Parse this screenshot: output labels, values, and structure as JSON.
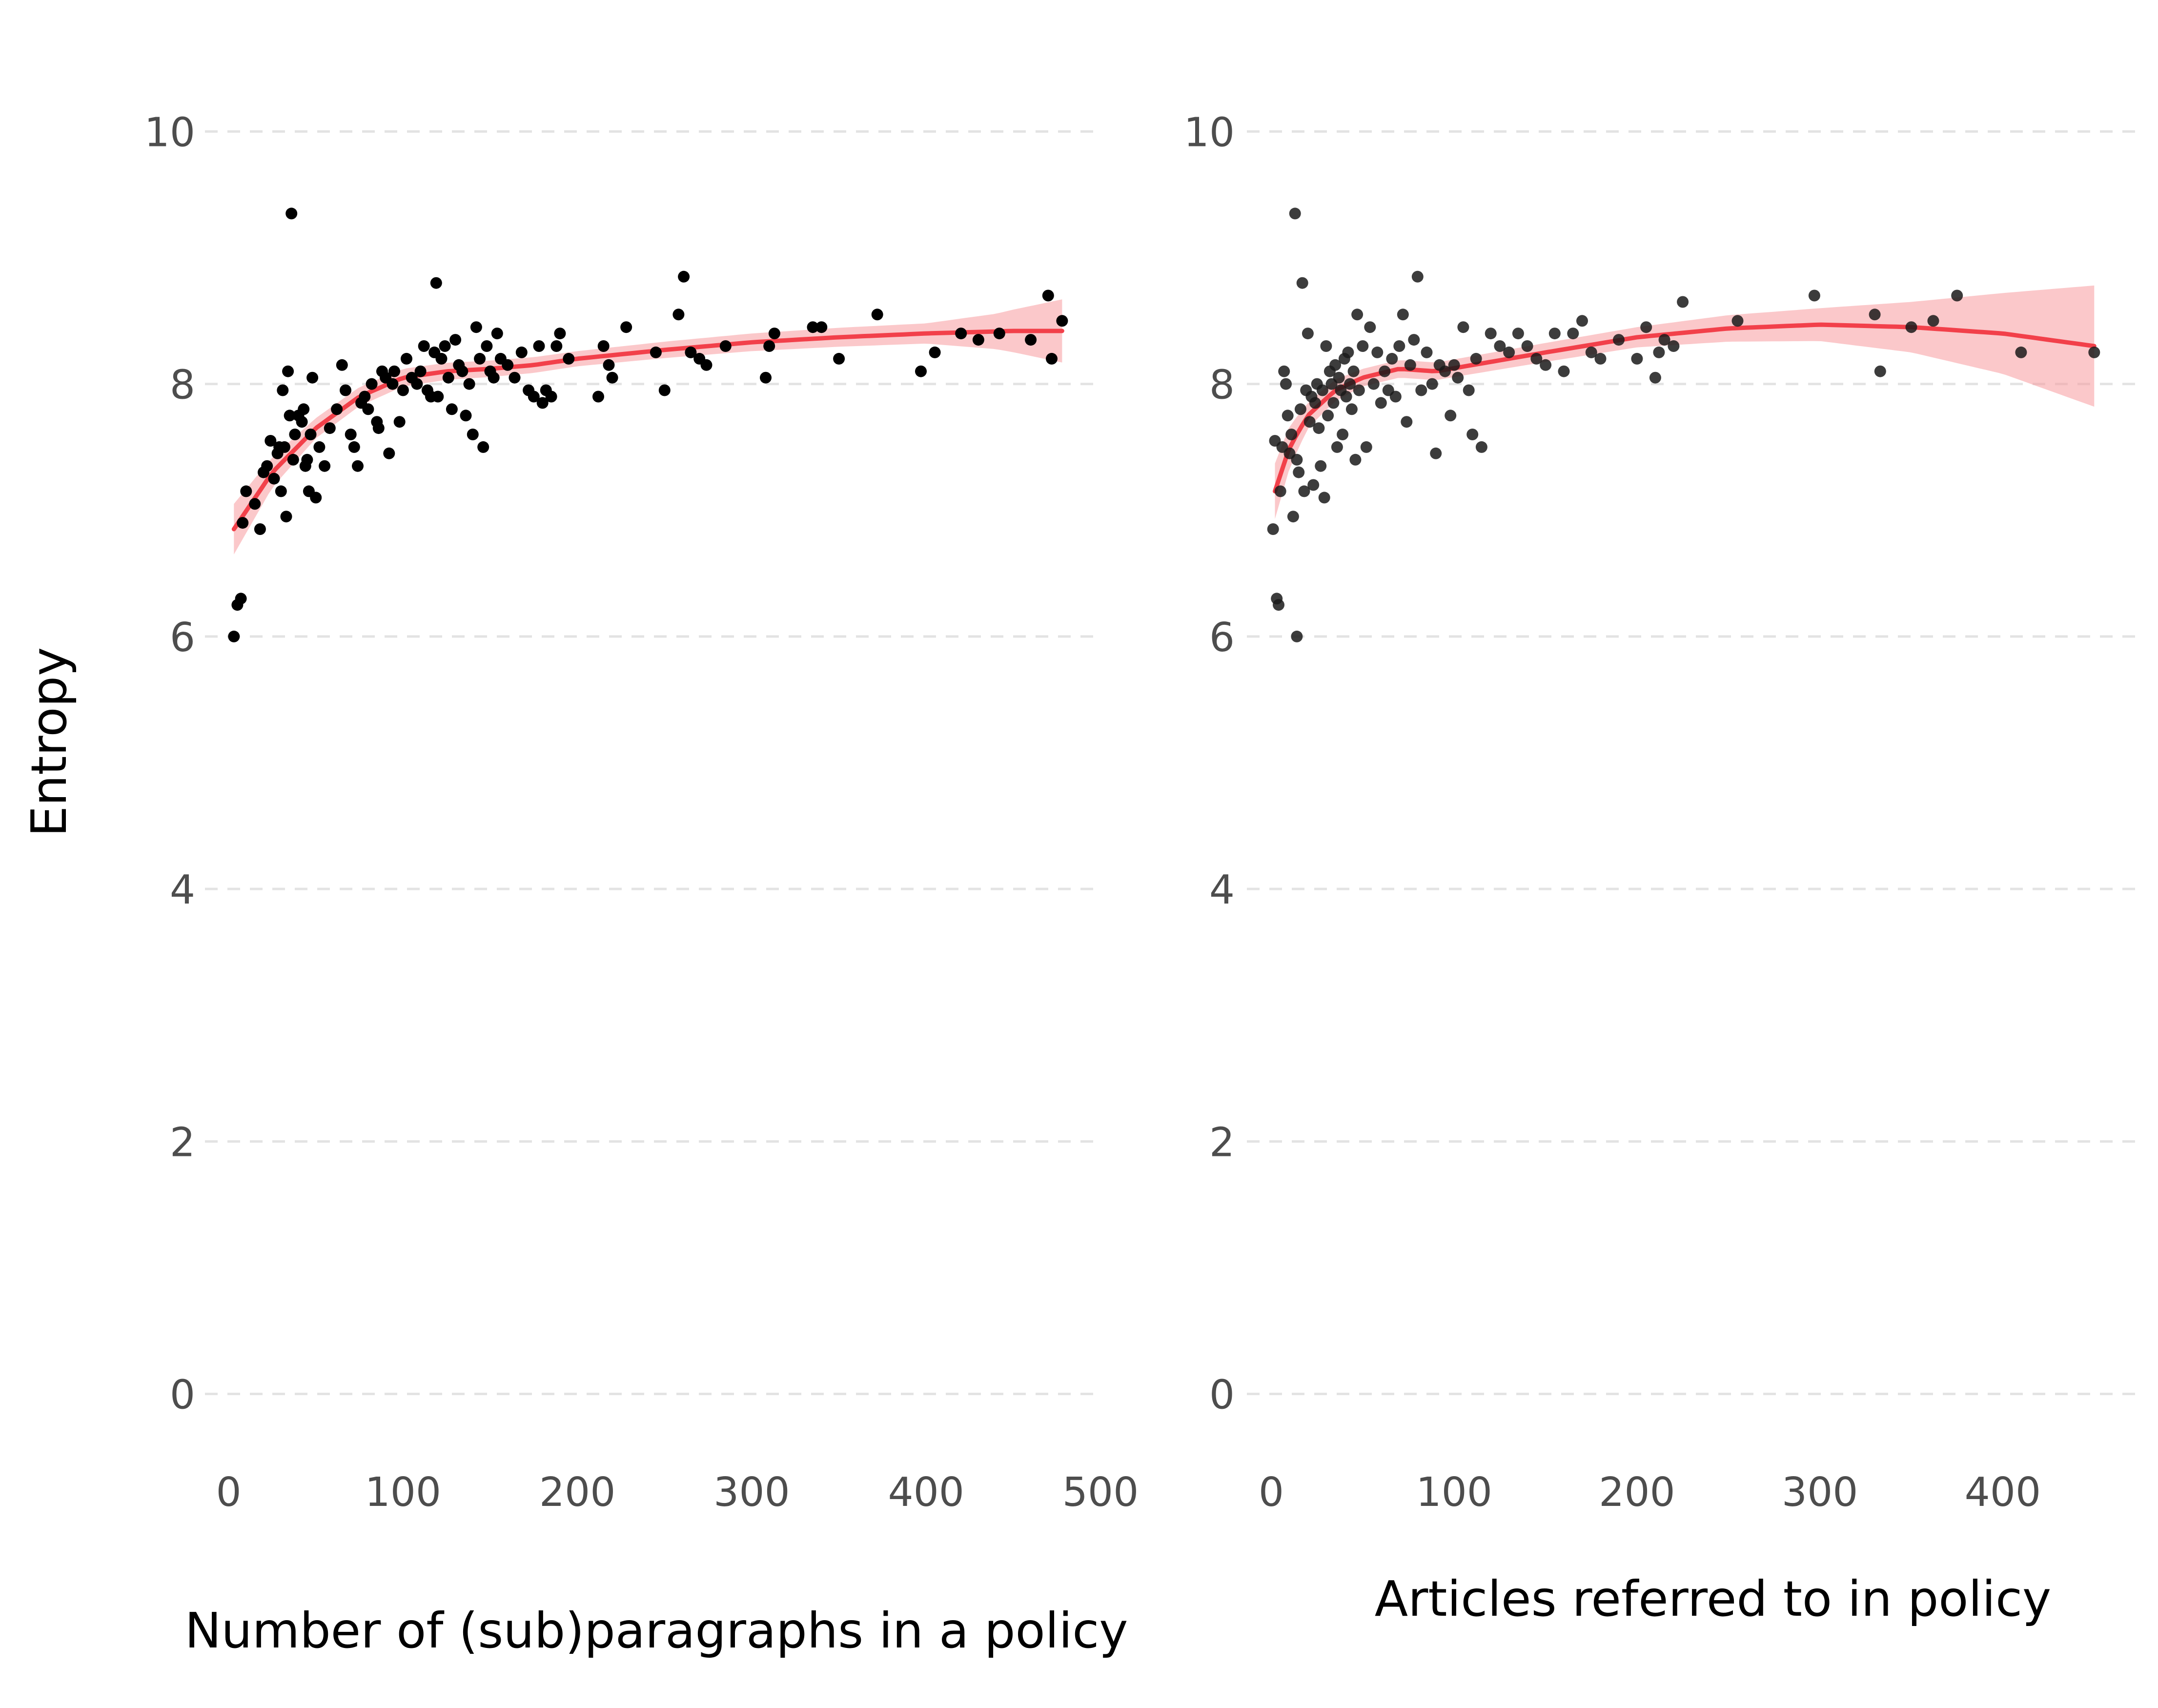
{
  "chart_data": [
    {
      "type": "scatter",
      "xlabel": "Number of (sub)paragraphs in a policy",
      "ylabel": "Entropy",
      "xlim": [
        -8,
        500
      ],
      "ylim": [
        -0.5,
        10.5
      ],
      "xticks": [
        0,
        100,
        200,
        300,
        400,
        500
      ],
      "yticks": [
        0,
        2,
        4,
        6,
        8,
        10
      ],
      "x_tick_labels": [
        "0",
        "100",
        "200",
        "300",
        "400",
        "500"
      ],
      "y_tick_labels": [
        "0",
        "2",
        "4",
        "6",
        "8",
        "10"
      ],
      "grid": true,
      "colors": {
        "points": "#000000",
        "smooth": "#f2404a",
        "band": "#f89a9e"
      },
      "points": [
        [
          3,
          6.0
        ],
        [
          5,
          6.25
        ],
        [
          7,
          6.3
        ],
        [
          8,
          6.9
        ],
        [
          10,
          7.15
        ],
        [
          15,
          7.05
        ],
        [
          18,
          6.85
        ],
        [
          20,
          7.3
        ],
        [
          22,
          7.35
        ],
        [
          24,
          7.55
        ],
        [
          26,
          7.25
        ],
        [
          28,
          7.45
        ],
        [
          29,
          7.5
        ],
        [
          30,
          7.15
        ],
        [
          31,
          7.95
        ],
        [
          32,
          7.5
        ],
        [
          33,
          6.95
        ],
        [
          34,
          8.1
        ],
        [
          35,
          7.75
        ],
        [
          36,
          9.35
        ],
        [
          37,
          7.4
        ],
        [
          38,
          7.6
        ],
        [
          40,
          7.75
        ],
        [
          42,
          7.7
        ],
        [
          43,
          7.8
        ],
        [
          44,
          7.35
        ],
        [
          45,
          7.4
        ],
        [
          46,
          7.15
        ],
        [
          47,
          7.6
        ],
        [
          48,
          8.05
        ],
        [
          50,
          7.1
        ],
        [
          52,
          7.5
        ],
        [
          55,
          7.35
        ],
        [
          58,
          7.65
        ],
        [
          62,
          7.8
        ],
        [
          65,
          8.15
        ],
        [
          67,
          7.95
        ],
        [
          70,
          7.6
        ],
        [
          72,
          7.5
        ],
        [
          74,
          7.35
        ],
        [
          76,
          7.85
        ],
        [
          78,
          7.9
        ],
        [
          80,
          7.8
        ],
        [
          82,
          8.0
        ],
        [
          85,
          7.7
        ],
        [
          86,
          7.65
        ],
        [
          88,
          8.1
        ],
        [
          90,
          8.05
        ],
        [
          92,
          7.45
        ],
        [
          94,
          8.0
        ],
        [
          95,
          8.1
        ],
        [
          98,
          7.7
        ],
        [
          100,
          7.95
        ],
        [
          102,
          8.2
        ],
        [
          105,
          8.05
        ],
        [
          108,
          8.0
        ],
        [
          110,
          8.1
        ],
        [
          112,
          8.3
        ],
        [
          114,
          7.95
        ],
        [
          116,
          7.9
        ],
        [
          118,
          8.25
        ],
        [
          119,
          8.8
        ],
        [
          120,
          7.9
        ],
        [
          122,
          8.2
        ],
        [
          124,
          8.3
        ],
        [
          126,
          8.05
        ],
        [
          128,
          7.8
        ],
        [
          130,
          8.35
        ],
        [
          132,
          8.15
        ],
        [
          134,
          8.1
        ],
        [
          136,
          7.75
        ],
        [
          138,
          8.0
        ],
        [
          140,
          7.6
        ],
        [
          142,
          8.45
        ],
        [
          144,
          8.2
        ],
        [
          146,
          7.5
        ],
        [
          148,
          8.3
        ],
        [
          150,
          8.1
        ],
        [
          152,
          8.05
        ],
        [
          154,
          8.4
        ],
        [
          156,
          8.2
        ],
        [
          160,
          8.15
        ],
        [
          164,
          8.05
        ],
        [
          168,
          8.25
        ],
        [
          172,
          7.95
        ],
        [
          175,
          7.9
        ],
        [
          178,
          8.3
        ],
        [
          180,
          7.85
        ],
        [
          182,
          7.95
        ],
        [
          185,
          7.9
        ],
        [
          188,
          8.3
        ],
        [
          190,
          8.4
        ],
        [
          195,
          8.2
        ],
        [
          212,
          7.9
        ],
        [
          215,
          8.3
        ],
        [
          218,
          8.15
        ],
        [
          220,
          8.05
        ],
        [
          228,
          8.45
        ],
        [
          245,
          8.25
        ],
        [
          250,
          7.95
        ],
        [
          258,
          8.55
        ],
        [
          261,
          8.85
        ],
        [
          265,
          8.25
        ],
        [
          270,
          8.2
        ],
        [
          274,
          8.15
        ],
        [
          285,
          8.3
        ],
        [
          308,
          8.05
        ],
        [
          310,
          8.3
        ],
        [
          313,
          8.4
        ],
        [
          335,
          8.45
        ],
        [
          340,
          8.45
        ],
        [
          350,
          8.2
        ],
        [
          372,
          8.55
        ],
        [
          397,
          8.1
        ],
        [
          405,
          8.25
        ],
        [
          420,
          8.4
        ],
        [
          430,
          8.35
        ],
        [
          442,
          8.4
        ],
        [
          460,
          8.35
        ],
        [
          470,
          8.7
        ],
        [
          472,
          8.2
        ],
        [
          478,
          8.5
        ]
      ],
      "smooth": [
        [
          3,
          6.85
        ],
        [
          25,
          7.3
        ],
        [
          50,
          7.65
        ],
        [
          75,
          7.9
        ],
        [
          100,
          8.05
        ],
        [
          125,
          8.1
        ],
        [
          150,
          8.12
        ],
        [
          175,
          8.15
        ],
        [
          200,
          8.2
        ],
        [
          250,
          8.27
        ],
        [
          300,
          8.33
        ],
        [
          350,
          8.37
        ],
        [
          400,
          8.4
        ],
        [
          450,
          8.42
        ],
        [
          478,
          8.42
        ]
      ],
      "band_half_width": [
        [
          3,
          0.2
        ],
        [
          25,
          0.12
        ],
        [
          50,
          0.08
        ],
        [
          100,
          0.07
        ],
        [
          200,
          0.06
        ],
        [
          300,
          0.07
        ],
        [
          400,
          0.08
        ],
        [
          440,
          0.14
        ],
        [
          478,
          0.25
        ]
      ]
    },
    {
      "type": "scatter",
      "xlabel": "Articles referred to in policy",
      "ylabel": "",
      "xlim": [
        -8,
        455
      ],
      "ylim": [
        -0.5,
        10.5
      ],
      "xticks": [
        0,
        100,
        200,
        300,
        400
      ],
      "yticks": [
        0,
        2,
        4,
        6,
        8,
        10
      ],
      "x_tick_labels": [
        "0",
        "100",
        "200",
        "300",
        "400"
      ],
      "y_tick_labels": [
        "0",
        "2",
        "4",
        "6",
        "8",
        "10"
      ],
      "grid": true,
      "colors": {
        "points": "#1a1a1a",
        "smooth": "#f2404a",
        "band": "#f89a9e"
      },
      "points": [
        [
          1,
          6.85
        ],
        [
          2,
          7.55
        ],
        [
          3,
          6.3
        ],
        [
          4,
          6.25
        ],
        [
          5,
          7.15
        ],
        [
          6,
          7.5
        ],
        [
          7,
          8.1
        ],
        [
          8,
          8.0
        ],
        [
          9,
          7.75
        ],
        [
          10,
          7.45
        ],
        [
          11,
          7.6
        ],
        [
          12,
          6.95
        ],
        [
          13,
          9.35
        ],
        [
          14,
          6.0
        ],
        [
          14,
          7.4
        ],
        [
          15,
          7.3
        ],
        [
          16,
          7.8
        ],
        [
          17,
          8.8
        ],
        [
          18,
          7.15
        ],
        [
          19,
          7.95
        ],
        [
          20,
          8.4
        ],
        [
          21,
          7.7
        ],
        [
          22,
          7.9
        ],
        [
          23,
          7.2
        ],
        [
          24,
          7.85
        ],
        [
          25,
          8.0
        ],
        [
          26,
          7.65
        ],
        [
          27,
          7.35
        ],
        [
          28,
          7.95
        ],
        [
          29,
          7.1
        ],
        [
          30,
          8.3
        ],
        [
          31,
          7.75
        ],
        [
          32,
          8.1
        ],
        [
          33,
          8.0
        ],
        [
          34,
          7.85
        ],
        [
          35,
          8.15
        ],
        [
          36,
          7.5
        ],
        [
          37,
          8.05
        ],
        [
          38,
          7.95
        ],
        [
          39,
          7.6
        ],
        [
          40,
          8.2
        ],
        [
          41,
          7.9
        ],
        [
          42,
          8.25
        ],
        [
          43,
          8.0
        ],
        [
          44,
          7.8
        ],
        [
          45,
          8.1
        ],
        [
          46,
          7.4
        ],
        [
          47,
          8.55
        ],
        [
          48,
          7.95
        ],
        [
          50,
          8.3
        ],
        [
          52,
          7.5
        ],
        [
          54,
          8.45
        ],
        [
          56,
          8.0
        ],
        [
          58,
          8.25
        ],
        [
          60,
          7.85
        ],
        [
          62,
          8.1
        ],
        [
          64,
          7.95
        ],
        [
          66,
          8.2
        ],
        [
          68,
          7.9
        ],
        [
          70,
          8.3
        ],
        [
          72,
          8.55
        ],
        [
          74,
          7.7
        ],
        [
          76,
          8.15
        ],
        [
          78,
          8.35
        ],
        [
          80,
          8.85
        ],
        [
          82,
          7.95
        ],
        [
          85,
          8.25
        ],
        [
          88,
          8.0
        ],
        [
          90,
          7.45
        ],
        [
          92,
          8.15
        ],
        [
          95,
          8.1
        ],
        [
          98,
          7.75
        ],
        [
          100,
          8.15
        ],
        [
          102,
          8.05
        ],
        [
          105,
          8.45
        ],
        [
          108,
          7.95
        ],
        [
          110,
          7.6
        ],
        [
          112,
          8.2
        ],
        [
          115,
          7.5
        ],
        [
          120,
          8.4
        ],
        [
          125,
          8.3
        ],
        [
          130,
          8.25
        ],
        [
          135,
          8.4
        ],
        [
          140,
          8.3
        ],
        [
          145,
          8.2
        ],
        [
          150,
          8.15
        ],
        [
          155,
          8.4
        ],
        [
          160,
          8.1
        ],
        [
          165,
          8.4
        ],
        [
          170,
          8.5
        ],
        [
          175,
          8.25
        ],
        [
          180,
          8.2
        ],
        [
          190,
          8.35
        ],
        [
          200,
          8.2
        ],
        [
          205,
          8.45
        ],
        [
          210,
          8.05
        ],
        [
          212,
          8.25
        ],
        [
          215,
          8.35
        ],
        [
          220,
          8.3
        ],
        [
          225,
          8.65
        ],
        [
          255,
          8.5
        ],
        [
          297,
          8.7
        ],
        [
          330,
          8.55
        ],
        [
          333,
          8.1
        ],
        [
          350,
          8.45
        ],
        [
          362,
          8.5
        ],
        [
          375,
          8.7
        ],
        [
          410,
          8.25
        ],
        [
          450,
          8.25
        ]
      ],
      "smooth": [
        [
          2,
          7.15
        ],
        [
          10,
          7.5
        ],
        [
          20,
          7.75
        ],
        [
          35,
          7.95
        ],
        [
          50,
          8.05
        ],
        [
          70,
          8.12
        ],
        [
          90,
          8.1
        ],
        [
          110,
          8.15
        ],
        [
          150,
          8.25
        ],
        [
          200,
          8.37
        ],
        [
          250,
          8.44
        ],
        [
          300,
          8.47
        ],
        [
          350,
          8.45
        ],
        [
          400,
          8.4
        ],
        [
          450,
          8.3
        ]
      ],
      "band_half_width": [
        [
          2,
          0.22
        ],
        [
          20,
          0.1
        ],
        [
          50,
          0.07
        ],
        [
          100,
          0.07
        ],
        [
          200,
          0.08
        ],
        [
          300,
          0.13
        ],
        [
          350,
          0.2
        ],
        [
          400,
          0.32
        ],
        [
          450,
          0.48
        ]
      ]
    }
  ]
}
